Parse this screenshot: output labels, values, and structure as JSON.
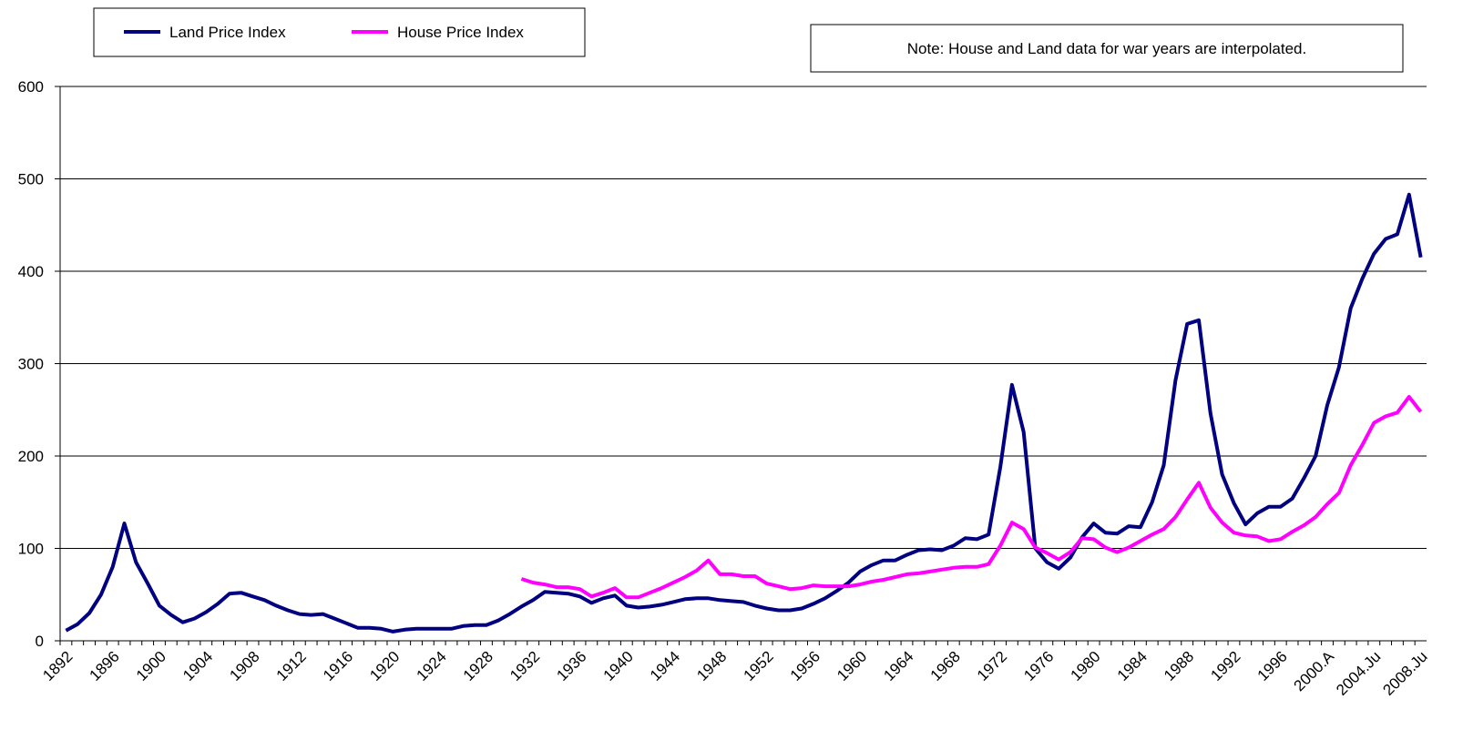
{
  "chart_data": {
    "type": "line",
    "note": "Note: House and Land data for war years are interpolated.",
    "categories": [
      "1892",
      null,
      null,
      null,
      "1896",
      null,
      null,
      null,
      "1900",
      null,
      null,
      null,
      "1904",
      null,
      null,
      null,
      "1908",
      null,
      null,
      null,
      "1912",
      null,
      null,
      null,
      "1916",
      null,
      null,
      null,
      "1920",
      null,
      null,
      null,
      "1924",
      null,
      null,
      null,
      "1928",
      null,
      null,
      null,
      "1932",
      null,
      null,
      null,
      "1936",
      null,
      null,
      null,
      "1940",
      null,
      null,
      null,
      "1944",
      null,
      null,
      null,
      "1948",
      null,
      null,
      null,
      "1952",
      null,
      null,
      null,
      "1956",
      null,
      null,
      null,
      "1960",
      null,
      null,
      null,
      "1964",
      null,
      null,
      null,
      "1968",
      null,
      null,
      null,
      "1972",
      null,
      null,
      null,
      "1976",
      null,
      null,
      null,
      "1980",
      null,
      null,
      null,
      "1984",
      null,
      null,
      null,
      "1988",
      null,
      null,
      null,
      "1992",
      null,
      null,
      null,
      "1996",
      null,
      null,
      null,
      "2000.A",
      null,
      null,
      null,
      "2004.Ju",
      null,
      null,
      null,
      "2008.Ju"
    ],
    "series": [
      {
        "name": "Land Price Index",
        "color": "#000080",
        "values": [
          11,
          18,
          30,
          50,
          80,
          127,
          85,
          62,
          38,
          28,
          20,
          24,
          31,
          40,
          51,
          52,
          48,
          44,
          38,
          33,
          29,
          28,
          29,
          24,
          19,
          14,
          14,
          13,
          10,
          12,
          13,
          13,
          13,
          13,
          16,
          17,
          17,
          22,
          29,
          37,
          44,
          53,
          52,
          51,
          48,
          41,
          46,
          49,
          38,
          36,
          37,
          39,
          42,
          45,
          46,
          46,
          44,
          43,
          42,
          38,
          35,
          33,
          33,
          35,
          40,
          46,
          54,
          63,
          75,
          82,
          87,
          87,
          93,
          98,
          99,
          98,
          103,
          111,
          110,
          115,
          188,
          277,
          226,
          100,
          85,
          78,
          90,
          112,
          127,
          117,
          116,
          124,
          123,
          150,
          190,
          282,
          343,
          347,
          246,
          180,
          149,
          126,
          138,
          145,
          145,
          154,
          176,
          200,
          255,
          296,
          360,
          392,
          419,
          435,
          440,
          483,
          415
        ]
      },
      {
        "name": "House Price Index",
        "color": "#ff00ff",
        "values": [
          null,
          null,
          null,
          null,
          null,
          null,
          null,
          null,
          null,
          null,
          null,
          null,
          null,
          null,
          null,
          null,
          null,
          null,
          null,
          null,
          null,
          null,
          null,
          null,
          null,
          null,
          null,
          null,
          null,
          null,
          null,
          null,
          null,
          null,
          null,
          null,
          null,
          null,
          null,
          67,
          63,
          61,
          58,
          58,
          56,
          48,
          52,
          57,
          47,
          47,
          52,
          57,
          63,
          69,
          76,
          87,
          72,
          72,
          70,
          70,
          62,
          59,
          56,
          57,
          60,
          59,
          59,
          59,
          61,
          64,
          66,
          69,
          72,
          73,
          75,
          77,
          79,
          80,
          80,
          83,
          103,
          128,
          121,
          101,
          95,
          88,
          96,
          111,
          110,
          101,
          96,
          101,
          108,
          115,
          121,
          134,
          153,
          171,
          144,
          128,
          117,
          114,
          113,
          108,
          110,
          118,
          125,
          134,
          148,
          160,
          190,
          212,
          236,
          243,
          247,
          264,
          248
        ]
      }
    ],
    "ylim": [
      0,
      600
    ],
    "yticks": [
      0,
      100,
      200,
      300,
      400,
      500,
      600
    ],
    "grid": true
  }
}
